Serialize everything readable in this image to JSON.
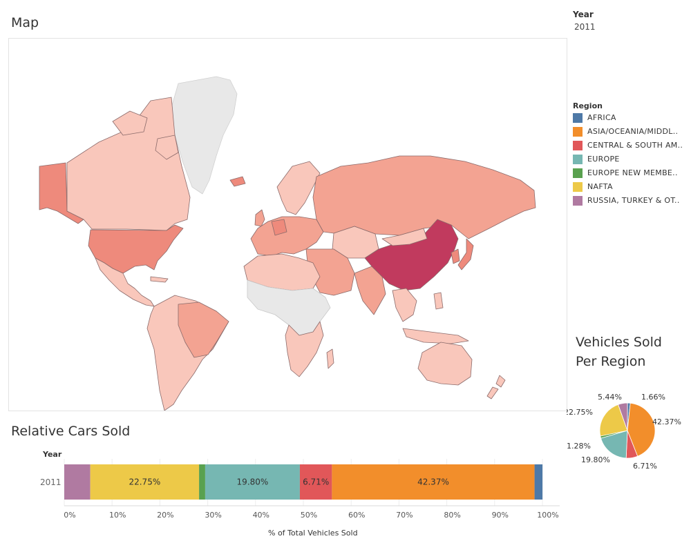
{
  "year_filter": {
    "label": "Year",
    "value": "2011"
  },
  "map": {
    "title": "Map",
    "colors": {
      "high": "#c13a5e",
      "mid_high": "#ee8a7c",
      "mid": "#f3a392",
      "low": "#f9c7bb",
      "no_data": "#e8e8e8"
    }
  },
  "legend": {
    "title": "Region",
    "items": [
      {
        "label": "AFRICA",
        "color": "#4e79a7"
      },
      {
        "label": "ASIA/OCEANIA/MIDDL..",
        "color": "#f28e2b"
      },
      {
        "label": "CENTRAL & SOUTH AM..",
        "color": "#e15759"
      },
      {
        "label": "EUROPE",
        "color": "#76b7b2"
      },
      {
        "label": "EUROPE NEW MEMBE..",
        "color": "#59a14f"
      },
      {
        "label": "NAFTA",
        "color": "#edc948"
      },
      {
        "label": "RUSSIA, TURKEY & OT..",
        "color": "#b07aa1"
      }
    ]
  },
  "pie": {
    "title_line1": "Vehicles Sold",
    "title_line2": "Per Region"
  },
  "bar": {
    "title": "Relative Cars Sold",
    "row_header": "Year",
    "row_label": "2011",
    "x_axis_title": "% of Total Vehicles Sold"
  },
  "chart_data": [
    {
      "type": "bar",
      "title": "Relative Cars Sold",
      "orientation": "horizontal-stacked",
      "categories": [
        "2011"
      ],
      "xlabel": "% of Total Vehicles Sold",
      "xlim": [
        0,
        100
      ],
      "x_ticks": [
        "0%",
        "10%",
        "20%",
        "30%",
        "40%",
        "50%",
        "60%",
        "70%",
        "80%",
        "90%",
        "100%"
      ],
      "series": [
        {
          "name": "RUSSIA, TURKEY & OT..",
          "values": [
            5.44
          ],
          "color": "#b07aa1",
          "label": ""
        },
        {
          "name": "NAFTA",
          "values": [
            22.75
          ],
          "color": "#edc948",
          "label": "22.75%"
        },
        {
          "name": "EUROPE NEW MEMBE..",
          "values": [
            1.28
          ],
          "color": "#59a14f",
          "label": ""
        },
        {
          "name": "EUROPE",
          "values": [
            19.8
          ],
          "color": "#76b7b2",
          "label": "19.80%"
        },
        {
          "name": "CENTRAL & SOUTH AM..",
          "values": [
            6.71
          ],
          "color": "#e15759",
          "label": "6.71%"
        },
        {
          "name": "ASIA/OCEANIA/MIDDL..",
          "values": [
            42.37
          ],
          "color": "#f28e2b",
          "label": "42.37%"
        },
        {
          "name": "AFRICA",
          "values": [
            1.66
          ],
          "color": "#4e79a7",
          "label": ""
        }
      ]
    },
    {
      "type": "pie",
      "title": "Vehicles Sold Per Region",
      "slices": [
        {
          "name": "AFRICA",
          "value": 1.66,
          "label": "1.66%",
          "color": "#4e79a7"
        },
        {
          "name": "ASIA/OCEANIA/MIDDL..",
          "value": 42.37,
          "label": "42.37%",
          "color": "#f28e2b"
        },
        {
          "name": "CENTRAL & SOUTH AM..",
          "value": 6.71,
          "label": "6.71%",
          "color": "#e15759"
        },
        {
          "name": "EUROPE",
          "value": 19.8,
          "label": "19.80%",
          "color": "#76b7b2"
        },
        {
          "name": "EUROPE NEW MEMBE..",
          "value": 1.28,
          "label": "1.28%",
          "color": "#59a14f"
        },
        {
          "name": "NAFTA",
          "value": 22.75,
          "label": "22.75%",
          "color": "#edc948"
        },
        {
          "name": "RUSSIA, TURKEY & OT..",
          "value": 5.44,
          "label": "5.44%",
          "color": "#b07aa1"
        }
      ]
    }
  ]
}
